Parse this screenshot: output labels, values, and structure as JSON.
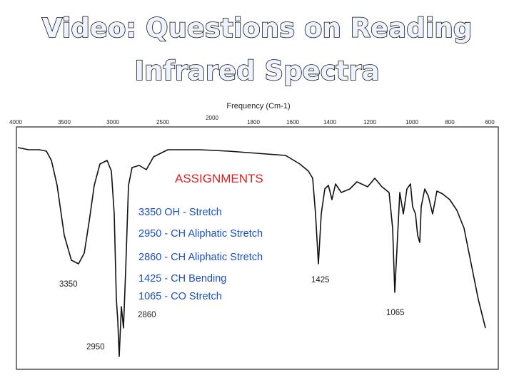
{
  "header": {
    "title": [
      "Video: Questions on Reading",
      "Infrared Spectra"
    ]
  },
  "spectrum": {
    "axis_title": "Frequency  (Cm-1)",
    "ticks": [
      "4000",
      "3500",
      "3000",
      "2500",
      "2000",
      "1800",
      "1600",
      "1400",
      "1200",
      "1000",
      "800",
      "600"
    ]
  },
  "assignments": {
    "heading": "ASSIGNMENTS",
    "items": [
      "3350 OH - Stretch",
      "2950 - CH Aliphatic Stretch",
      "2860 - CH Aliphatic Stretch",
      "1425 - CH Bending",
      "1065 - CO Stretch"
    ]
  },
  "peak_labels": [
    "3350",
    "2950",
    "2860",
    "1425",
    "1065"
  ]
}
